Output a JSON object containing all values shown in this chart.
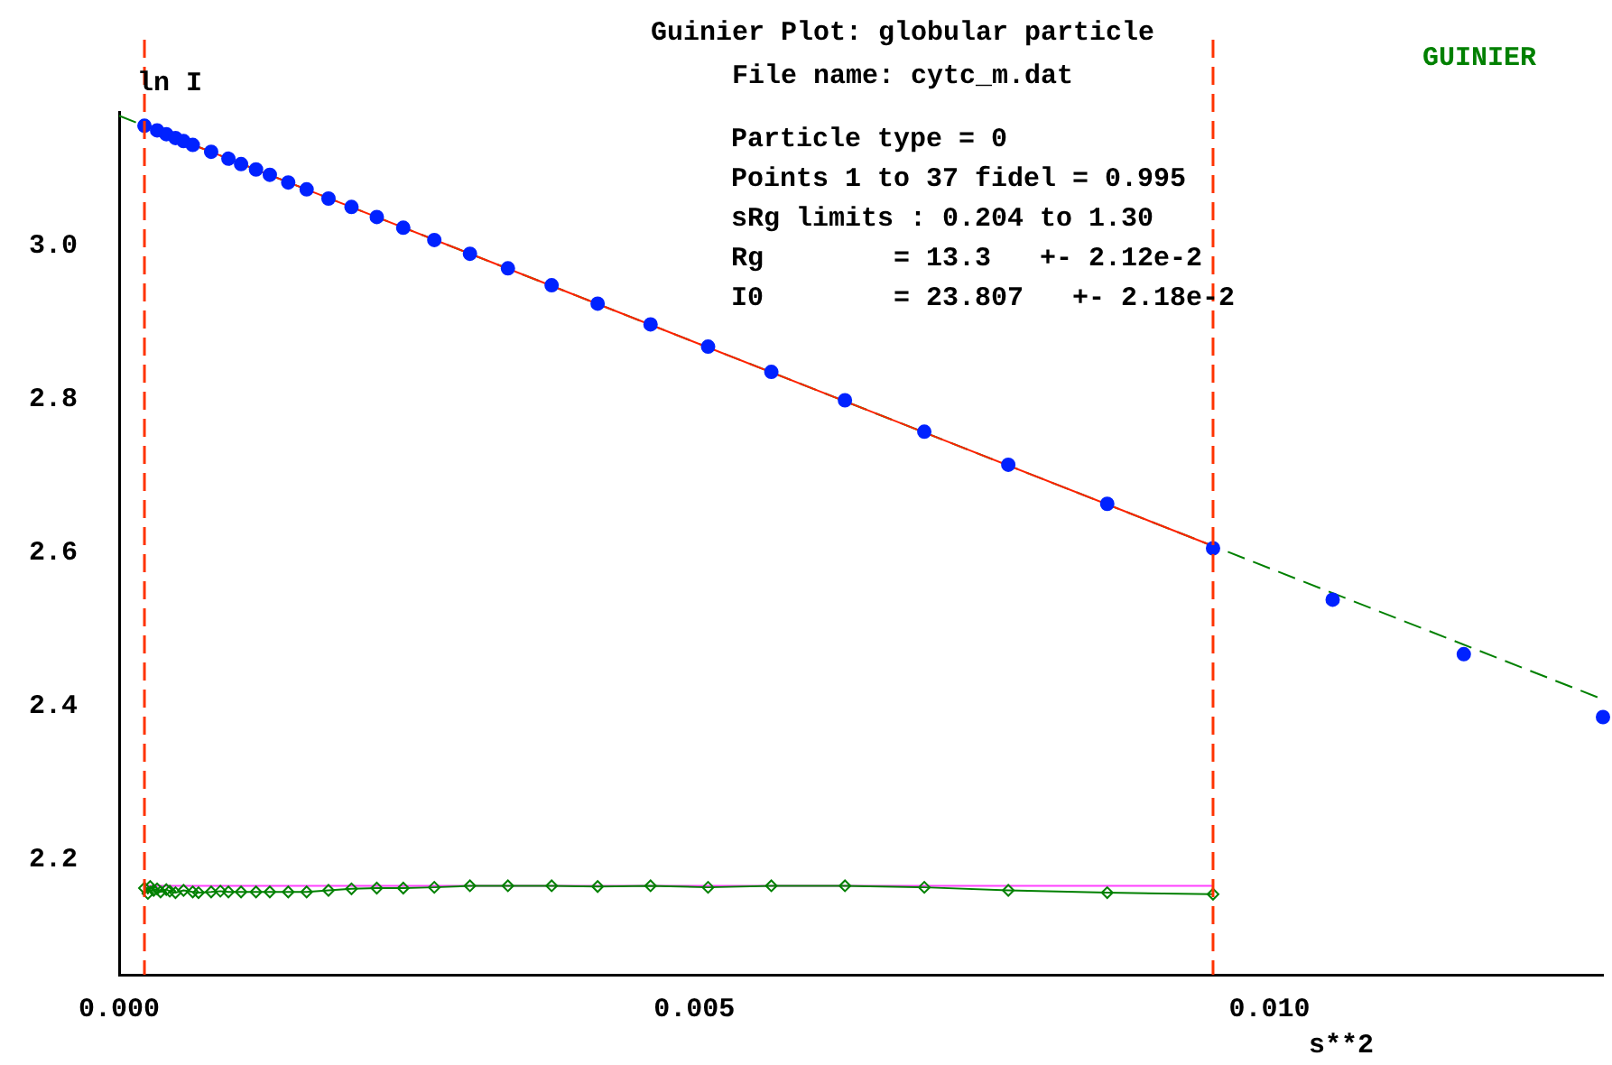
{
  "chart_data": {
    "type": "scatter",
    "title": "Guinier Plot: globular particle",
    "subtitle": "File name: cytc_m.dat",
    "xlabel": "s**2",
    "ylabel": "ln I",
    "annotations": [
      "GUINIER",
      "Particle type = 0",
      "Points 1 to 37 fidel = 0.995",
      "sRg limits : 0.204 to 1.30",
      "Rg        = 13.3   +- 2.12e-2",
      "I0        = 23.807   +- 2.18e-2"
    ],
    "xlim": [
      0,
      0.0129
    ],
    "ylim": [
      2.05,
      3.175
    ],
    "xticks": [
      {
        "value": 0,
        "label": "0.000"
      },
      {
        "value": 0.005,
        "label": "0.005"
      },
      {
        "value": 0.01,
        "label": "0.010"
      }
    ],
    "yticks": [
      2.2,
      2.4,
      2.6,
      2.8,
      {
        "value": 3,
        "label": "3.0"
      }
    ],
    "grid": false,
    "legend": false,
    "ref_lines": [
      {
        "axis": "x",
        "value": 0.00022,
        "color": "#ff3300",
        "line_style": "dashed"
      },
      {
        "axis": "x",
        "value": 0.00951,
        "color": "#ff3300",
        "line_style": "dashed"
      }
    ],
    "series": [
      {
        "color": "#0022ff",
        "marker": "circle",
        "x": [
          0.00022,
          0.00033,
          0.00041,
          0.00049,
          0.00056,
          0.00064,
          0.0008,
          0.00095,
          0.00106,
          0.00119,
          0.00131,
          0.00147,
          0.00163,
          0.00182,
          0.00202,
          0.00224,
          0.00247,
          0.00274,
          0.00305,
          0.00338,
          0.00376,
          0.00416,
          0.00462,
          0.00512,
          0.00567,
          0.00631,
          0.007,
          0.00773,
          0.00859,
          0.00951,
          0.01055,
          0.01169,
          0.0129
        ],
        "values": [
          3.157,
          3.151,
          3.146,
          3.141,
          3.137,
          3.132,
          3.123,
          3.114,
          3.107,
          3.1,
          3.093,
          3.083,
          3.074,
          3.062,
          3.051,
          3.038,
          3.024,
          3.008,
          2.99,
          2.971,
          2.949,
          2.925,
          2.898,
          2.869,
          2.836,
          2.799,
          2.758,
          2.715,
          2.664,
          2.606,
          2.539,
          2.468,
          2.386
        ]
      },
      {
        "type": "line",
        "color": "#ff2200",
        "marker": "none",
        "line_style": "solid",
        "x": [
          0.00022,
          0.00951
        ],
        "values": [
          3.157,
          2.609
        ]
      },
      {
        "type": "line",
        "color": "#008000",
        "marker": "none",
        "line_style": "dashed",
        "x": [
          0,
          0.0129
        ],
        "values": [
          3.17,
          2.409
        ]
      },
      {
        "type": "line",
        "color": "#008000",
        "marker": "diamond",
        "line_style": "solid",
        "x": [
          0.00022,
          0.00025,
          0.00027,
          0.0003,
          0.00033,
          0.00036,
          0.00041,
          0.00044,
          0.00049,
          0.00056,
          0.00064,
          0.00069,
          0.0008,
          0.00088,
          0.00095,
          0.00106,
          0.00119,
          0.00131,
          0.00147,
          0.00163,
          0.00182,
          0.00202,
          0.00224,
          0.00247,
          0.00274,
          0.00305,
          0.00338,
          0.00376,
          0.00416,
          0.00462,
          0.00512,
          0.00567,
          0.00631,
          0.007,
          0.00773,
          0.00859,
          0.00951
        ],
        "values": [
          2.163,
          2.156,
          2.165,
          2.16,
          2.162,
          2.158,
          2.161,
          2.159,
          2.157,
          2.16,
          2.158,
          2.157,
          2.158,
          2.159,
          2.158,
          2.158,
          2.158,
          2.158,
          2.158,
          2.158,
          2.16,
          2.162,
          2.163,
          2.163,
          2.164,
          2.166,
          2.166,
          2.166,
          2.165,
          2.166,
          2.164,
          2.166,
          2.166,
          2.164,
          2.16,
          2.157,
          2.155
        ]
      },
      {
        "type": "line",
        "color": "#ff40ff",
        "marker": "none",
        "line_style": "solid",
        "x": [
          0.00022,
          0.00951
        ],
        "values": [
          2.166,
          2.166
        ]
      }
    ]
  }
}
